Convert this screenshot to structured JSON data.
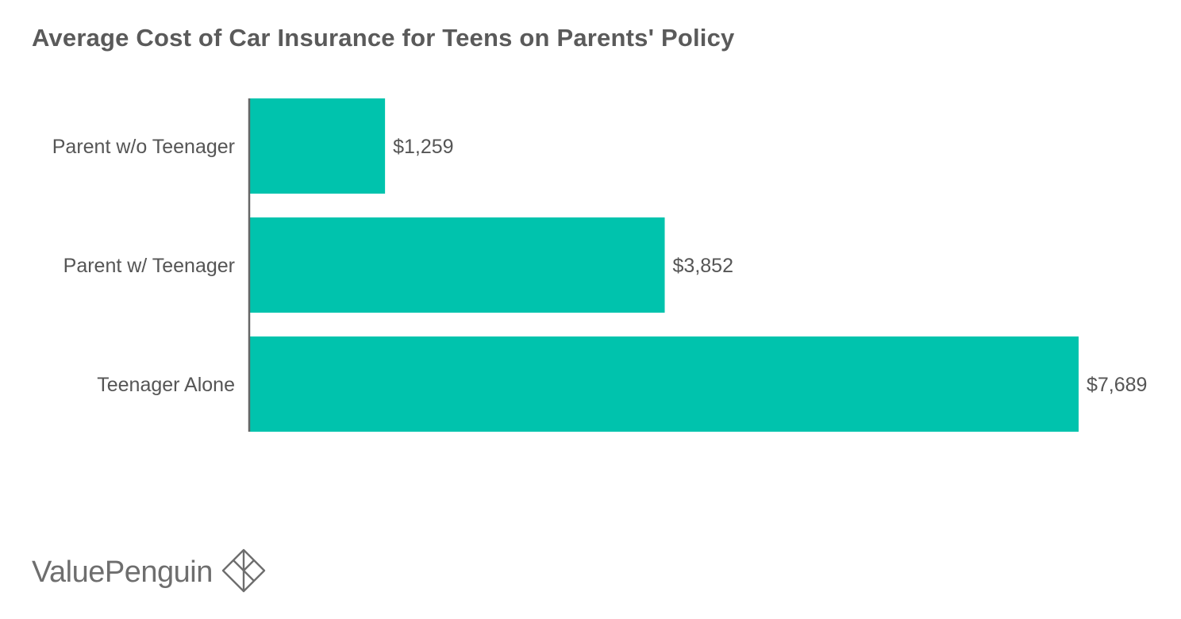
{
  "title": "Average Cost of Car Insurance for Teens on Parents' Policy",
  "brand": {
    "name": "ValuePenguin",
    "icon": "valuepenguin-diamond-icon",
    "color": "#6e6e6e"
  },
  "colors": {
    "bar": "#00c3ad",
    "axis": "#666666",
    "label": "#555555"
  },
  "chart_data": {
    "type": "bar",
    "orientation": "horizontal",
    "title": "Average Cost of Car Insurance for Teens on Parents' Policy",
    "xlabel": "",
    "ylabel": "",
    "categories": [
      "Parent w/o Teenager",
      "Parent w/ Teenager",
      "Teenager Alone"
    ],
    "values": [
      1259,
      3852,
      7689
    ],
    "value_labels": [
      "$1,259",
      "$3,852",
      "$7,689"
    ],
    "xlim": [
      0,
      7689
    ],
    "grid": false,
    "legend": "none"
  }
}
